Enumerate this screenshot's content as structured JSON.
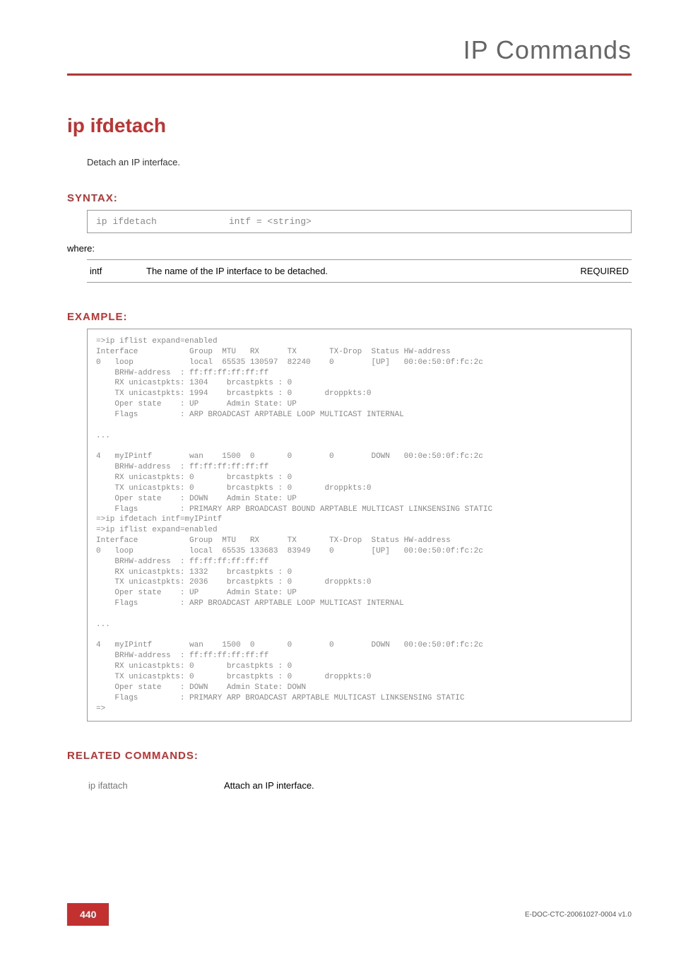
{
  "header": {
    "title": "IP Commands"
  },
  "command": {
    "name": "ip ifdetach",
    "description": "Detach an IP interface."
  },
  "syntax": {
    "heading": "SYNTAX:",
    "command": "ip ifdetach",
    "args": "intf = <string>",
    "where": "where:"
  },
  "params": [
    {
      "name": "intf",
      "desc": "The name of the IP interface to be detached.",
      "req": "REQUIRED"
    }
  ],
  "example": {
    "heading": "EXAMPLE:",
    "body": "=>ip iflist expand=enabled\nInterface           Group  MTU   RX      TX       TX-Drop  Status HW-address\n0   loop            local  65535 130597  82240    0        [UP]   00:0e:50:0f:fc:2c\n    BRHW-address  : ff:ff:ff:ff:ff:ff\n    RX unicastpkts: 1304    brcastpkts : 0\n    TX unicastpkts: 1994    brcastpkts : 0       droppkts:0\n    Oper state    : UP      Admin State: UP\n    Flags         : ARP BROADCAST ARPTABLE LOOP MULTICAST INTERNAL\n\n...\n\n4   myIPintf        wan    1500  0       0        0        DOWN   00:0e:50:0f:fc:2c\n    BRHW-address  : ff:ff:ff:ff:ff:ff\n    RX unicastpkts: 0       brcastpkts : 0\n    TX unicastpkts: 0       brcastpkts : 0       droppkts:0\n    Oper state    : DOWN    Admin State: UP\n    Flags         : PRIMARY ARP BROADCAST BOUND ARPTABLE MULTICAST LINKSENSING STATIC\n=>ip ifdetach intf=myIPintf\n=>ip iflist expand=enabled\nInterface           Group  MTU   RX      TX       TX-Drop  Status HW-address\n0   loop            local  65535 133683  83949    0        [UP]   00:0e:50:0f:fc:2c\n    BRHW-address  : ff:ff:ff:ff:ff:ff\n    RX unicastpkts: 1332    brcastpkts : 0\n    TX unicastpkts: 2036    brcastpkts : 0       droppkts:0\n    Oper state    : UP      Admin State: UP\n    Flags         : ARP BROADCAST ARPTABLE LOOP MULTICAST INTERNAL\n\n...\n\n4   myIPintf        wan    1500  0       0        0        DOWN   00:0e:50:0f:fc:2c\n    BRHW-address  : ff:ff:ff:ff:ff:ff\n    RX unicastpkts: 0       brcastpkts : 0\n    TX unicastpkts: 0       brcastpkts : 0       droppkts:0\n    Oper state    : DOWN    Admin State: DOWN\n    Flags         : PRIMARY ARP BROADCAST ARPTABLE MULTICAST LINKSENSING STATIC\n=>"
  },
  "related": {
    "heading": "RELATED COMMANDS:",
    "rows": [
      {
        "cmd": "ip ifattach",
        "desc": "Attach an IP interface."
      }
    ]
  },
  "footer": {
    "page": "440",
    "docid": "E-DOC-CTC-20061027-0004 v1.0"
  }
}
